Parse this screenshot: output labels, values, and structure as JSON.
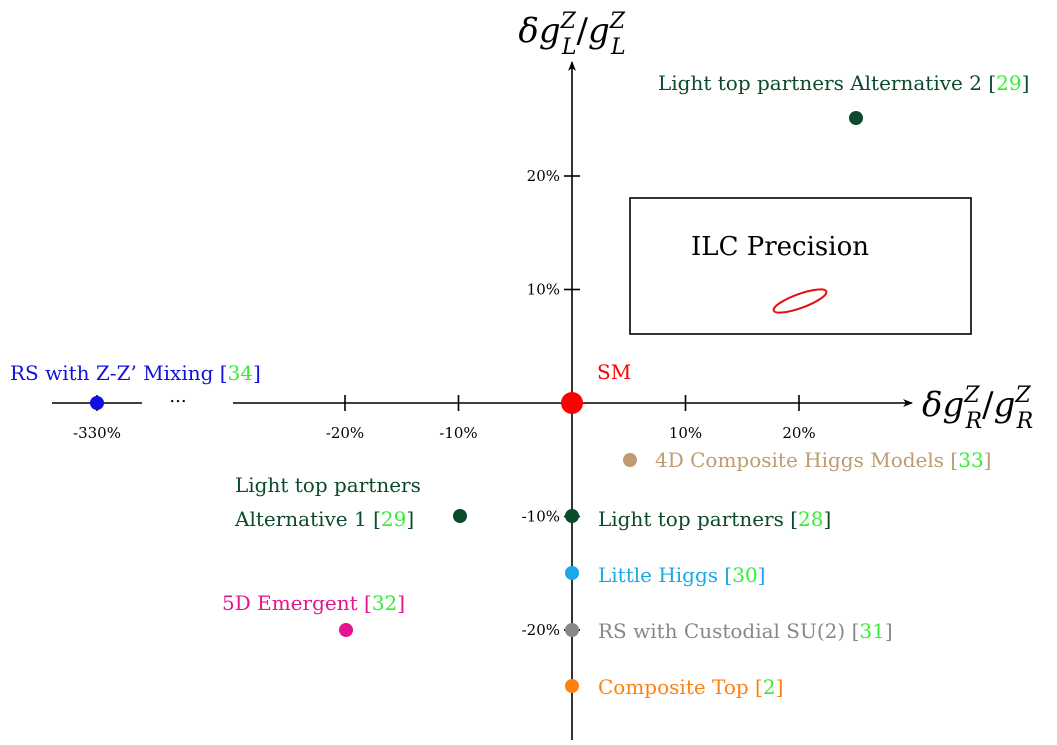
{
  "chart_data": {
    "type": "scatter",
    "title": "",
    "xlabel": {
      "base": "δg",
      "sup": "Z",
      "sub": "R",
      "sep": "/",
      "base2": "g",
      "sup2": "Z",
      "sub2": "R"
    },
    "ylabel": {
      "base": "δg",
      "sup": "Z",
      "sub": "L",
      "sep": "/",
      "base2": "g",
      "sup2": "Z",
      "sub2": "L"
    },
    "xlim": [
      -22,
      30
    ],
    "ylim": [
      -30,
      29
    ],
    "x_ticks": [
      {
        "value": -20,
        "label": "-20%"
      },
      {
        "value": -10,
        "label": "-10%"
      },
      {
        "value": 10,
        "label": "10%"
      },
      {
        "value": 20,
        "label": "20%"
      }
    ],
    "y_ticks": [
      {
        "value": 20,
        "label": "20%"
      },
      {
        "value": 10,
        "label": "10%"
      },
      {
        "value": -10,
        "label": "-10%"
      },
      {
        "value": -20,
        "label": "-20%"
      }
    ],
    "axis_break": {
      "x_value": -330,
      "label": "-330%",
      "ellipsis": "..."
    },
    "grid": false,
    "precision_box": {
      "label": "ILC Precision",
      "x": [
        5,
        35
      ],
      "y": [
        6,
        18
      ],
      "ellipse_center": [
        20,
        9
      ],
      "ellipse_color": "#e01010"
    },
    "points": [
      {
        "name": "SM",
        "x": 0,
        "y": 0,
        "color": "#ff0000",
        "big": true,
        "ref": ""
      },
      {
        "name": "Light top partners Alternative 2 ",
        "x": 25,
        "y": 25,
        "color": "#0b4a2a",
        "ref": "29"
      },
      {
        "name": "4D Composite Higgs Models ",
        "x": 5,
        "y": -5,
        "color": "#c09a70",
        "ref": "33"
      },
      {
        "name_lines": [
          "Light top partners",
          "Alternative 1 "
        ],
        "x": -10,
        "y": -10,
        "color": "#0b4a2a",
        "ref": "29"
      },
      {
        "name": "Light top partners ",
        "x": 0,
        "y": -10,
        "color": "#0b4a2a",
        "ref": "28"
      },
      {
        "name": "Little Higgs ",
        "x": 0,
        "y": -15,
        "color": "#1aa8e8",
        "ref": "30"
      },
      {
        "name": "5D Emergent ",
        "x": -20,
        "y": -20,
        "color": "#e6158f",
        "ref": "32"
      },
      {
        "name": "RS with Custodial SU(2) ",
        "x": 0,
        "y": -20,
        "color": "#888888",
        "ref": "31"
      },
      {
        "name": "Composite Top ",
        "x": 0,
        "y": -25,
        "color": "#ff8010",
        "ref": "2"
      },
      {
        "name": "RS with Z-Z’ Mixing ",
        "x": -330,
        "y": 0,
        "color": "#1010e0",
        "ref": "34"
      }
    ],
    "ref_color": "#33ee33"
  }
}
